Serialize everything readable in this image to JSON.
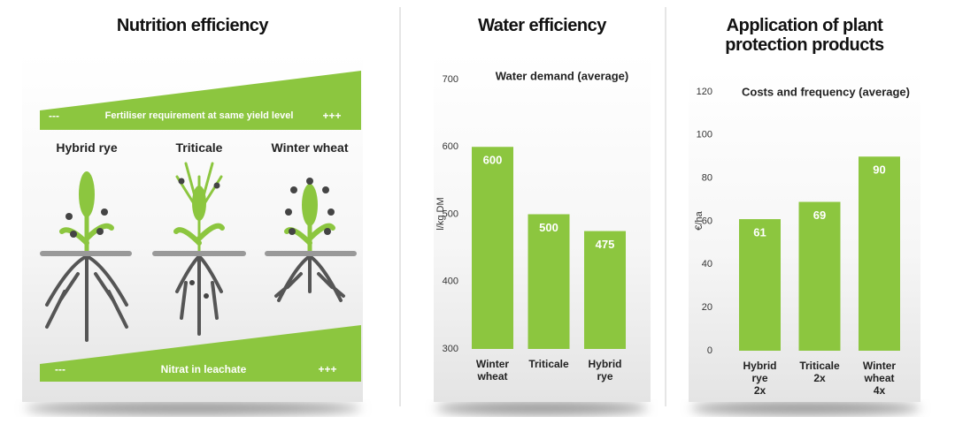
{
  "nutrition": {
    "title": "Nutrition efficiency",
    "fertiliser": {
      "low": "---",
      "label": "Fertiliser requirement at same yield level",
      "high": "+++"
    },
    "plants": [
      "Hybrid rye",
      "Triticale",
      "Winter wheat"
    ],
    "leachate": {
      "low": "---",
      "label": "Nitrat in leachate",
      "high": "+++"
    }
  },
  "chart_data": [
    {
      "type": "bar",
      "title": "Water efficiency",
      "subtitle": "Water demand (average)",
      "y_label": "l/kg DM",
      "categories": [
        "Winter\nwheat",
        "Triticale",
        "Hybrid\nrye"
      ],
      "values": [
        600,
        500,
        475
      ],
      "color": "#8cc63f",
      "ylim": [
        300,
        700
      ],
      "yticks": [
        300,
        400,
        500,
        600,
        700
      ]
    },
    {
      "type": "bar",
      "title": "Application of plant protection products",
      "subtitle": "Costs and frequency (average)",
      "y_label": "€/ha",
      "categories": [
        "Hybrid\nrye\n2x",
        "Triticale\n2x",
        "Winter\nwheat\n4x"
      ],
      "values": [
        61,
        69,
        90
      ],
      "color": "#8cc63f",
      "ylim": [
        0,
        120
      ],
      "yticks": [
        0,
        20,
        40,
        60,
        80,
        100,
        120
      ]
    }
  ]
}
